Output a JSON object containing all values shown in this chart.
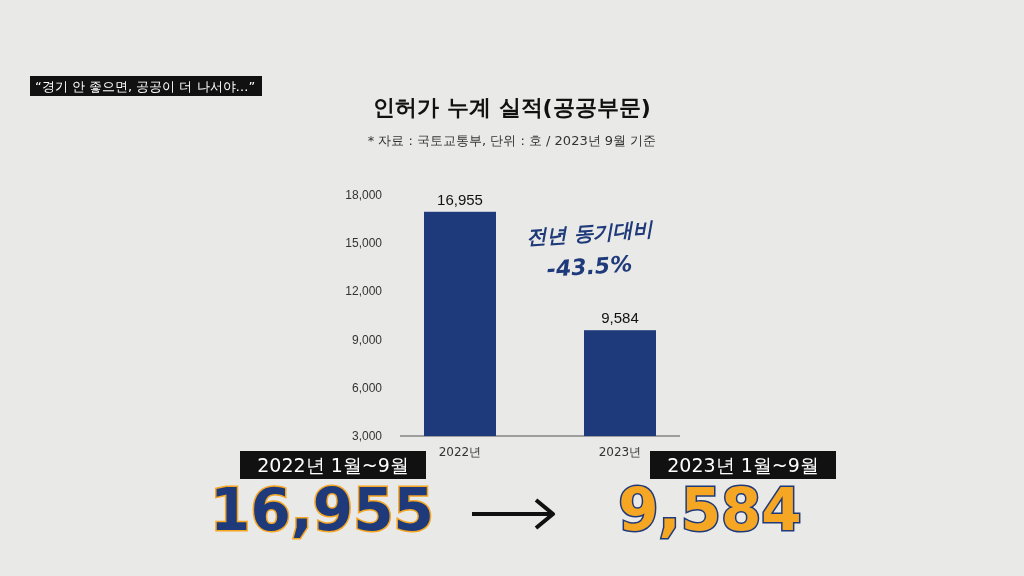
{
  "chart_data": {
    "type": "bar",
    "title": "인허가 누계 실적(공공부문)",
    "subtitle": "* 자료 : 국토교통부, 단위 : 호 / 2023년 9월 기준",
    "categories": [
      "2022년",
      "2023년"
    ],
    "values": [
      16955,
      9584
    ],
    "color": "#1f3a7a",
    "value_labels": [
      "16,955",
      "9,584"
    ],
    "ylim": [
      3000,
      18000
    ],
    "yticks": [
      {
        "value": 3000,
        "label": "3,000"
      },
      {
        "value": 6000,
        "label": "6,000"
      },
      {
        "value": 9000,
        "label": "9,000"
      },
      {
        "value": 12000,
        "label": "12,000"
      },
      {
        "value": 15000,
        "label": "15,000"
      },
      {
        "value": 18000,
        "label": "18,000"
      }
    ],
    "annotations": [
      "“경기 안 좋으면, 공공이 더 나서야…”",
      "전년 동기대비",
      "-43.5%",
      "2022년 1월~9월",
      "16,955",
      "2023년 1월~9월",
      "9,584"
    ]
  }
}
